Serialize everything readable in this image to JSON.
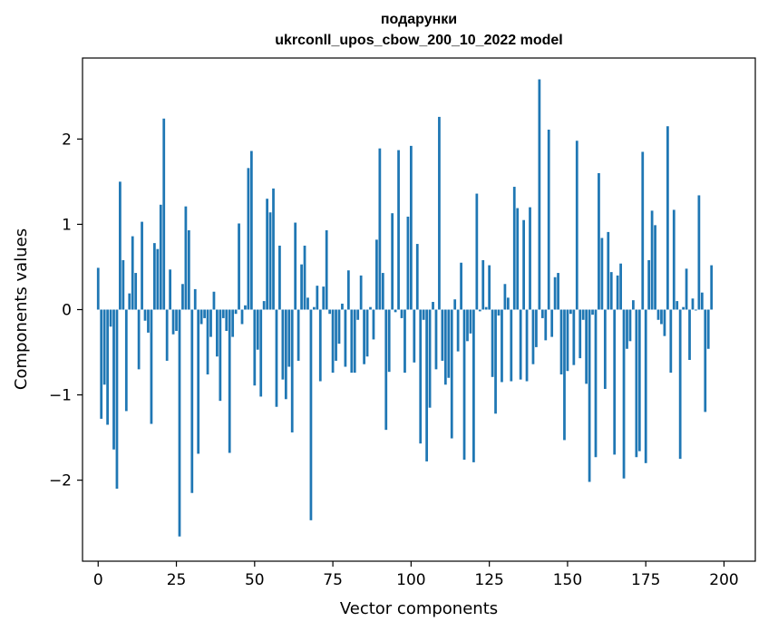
{
  "chart_data": {
    "type": "bar",
    "title": "подарунки",
    "subtitle": "ukrconll_upos_cbow_200_10_2022 model",
    "xlabel": "Vector components",
    "ylabel": "Components values",
    "xlim": [
      -5,
      210
    ],
    "ylim": [
      -2.95,
      2.95
    ],
    "xticks": [
      0,
      25,
      50,
      75,
      100,
      125,
      150,
      175,
      200
    ],
    "yticks": [
      -2,
      -1,
      0,
      1,
      2
    ],
    "ytick_labels": [
      "−2",
      "−1",
      "0",
      "1",
      "2"
    ],
    "grid": false,
    "bar_color": "#1f77b4",
    "values": [
      0.49,
      -1.28,
      -0.88,
      -1.35,
      -0.2,
      -1.64,
      -2.1,
      1.5,
      0.58,
      -1.19,
      0.19,
      0.86,
      0.43,
      -0.7,
      1.03,
      -0.13,
      -0.27,
      -1.34,
      0.78,
      0.71,
      1.23,
      2.24,
      -0.6,
      0.47,
      -0.29,
      -0.25,
      -2.66,
      0.3,
      1.21,
      0.93,
      -2.15,
      0.24,
      -1.69,
      -0.17,
      -0.1,
      -0.76,
      -0.32,
      0.21,
      -0.55,
      -1.07,
      -0.1,
      -0.25,
      -1.68,
      -0.32,
      -0.05,
      1.01,
      -0.17,
      0.05,
      1.66,
      1.86,
      -0.89,
      -0.47,
      -1.02,
      0.1,
      1.3,
      1.14,
      1.42,
      -1.14,
      0.75,
      -0.82,
      -1.05,
      -0.67,
      -1.44,
      1.02,
      -0.6,
      0.53,
      0.75,
      0.14,
      -2.47,
      0.03,
      0.28,
      -0.84,
      0.27,
      0.93,
      -0.05,
      -0.74,
      -0.6,
      -0.4,
      0.07,
      -0.67,
      0.46,
      -0.74,
      -0.74,
      -0.12,
      0.4,
      -0.64,
      -0.55,
      0.03,
      -0.35,
      0.82,
      1.89,
      0.43,
      -1.41,
      -0.73,
      1.13,
      -0.03,
      1.87,
      -0.1,
      -0.74,
      1.09,
      1.92,
      -0.62,
      0.77,
      -1.57,
      -0.12,
      -1.78,
      -1.15,
      0.09,
      -0.7,
      2.26,
      -0.6,
      -0.88,
      -0.8,
      -1.51,
      0.12,
      -0.49,
      0.55,
      -1.76,
      -0.37,
      -0.28,
      -1.79,
      1.36,
      -0.02,
      0.58,
      0.03,
      0.52,
      -0.79,
      -1.22,
      -0.07,
      -0.85,
      0.3,
      0.14,
      -0.84,
      1.44,
      1.19,
      -0.82,
      1.05,
      -0.84,
      1.2,
      -0.64,
      -0.44,
      2.7,
      -0.1,
      -0.36,
      2.11,
      -0.32,
      0.38,
      0.43,
      -0.76,
      -1.53,
      -0.72,
      -0.05,
      -0.65,
      1.98,
      -0.57,
      -0.12,
      -0.87,
      -2.02,
      -0.06,
      -1.73,
      1.6,
      0.84,
      -0.93,
      0.91,
      0.44,
      -1.7,
      0.4,
      0.54,
      -1.98,
      -0.46,
      -0.37,
      0.11,
      -1.73,
      -1.66,
      1.85,
      -1.8,
      0.58,
      1.16,
      0.99,
      -0.12,
      -0.17,
      -0.31,
      2.15,
      -0.74,
      1.17,
      0.1,
      -1.75,
      0.03,
      0.48,
      -0.59,
      0.13,
      -0.01,
      1.34,
      0.2,
      -1.2,
      -0.46,
      0.52
    ]
  }
}
